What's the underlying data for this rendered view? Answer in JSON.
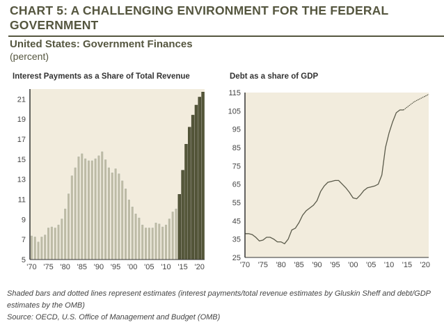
{
  "header": {
    "title": "CHART 5: A CHALLENGING ENVIRONMENT FOR THE FEDERAL GOVERNMENT",
    "subtitle": "United States: Government Finances",
    "unit": "(percent)"
  },
  "colors": {
    "plot_bg": "#f2ecdd",
    "actual_bar": "#bdbba6",
    "estimate_bar": "#55573a",
    "line": "#5a5a4a",
    "title": "#55563f"
  },
  "chart_data": [
    {
      "type": "bar",
      "title": "Interest Payments as a Share of Total Revenue",
      "x": [
        1970,
        1971,
        1972,
        1973,
        1974,
        1975,
        1976,
        1977,
        1978,
        1979,
        1980,
        1981,
        1982,
        1983,
        1984,
        1985,
        1986,
        1987,
        1988,
        1989,
        1990,
        1991,
        1992,
        1993,
        1994,
        1995,
        1996,
        1997,
        1998,
        1999,
        2000,
        2001,
        2002,
        2003,
        2004,
        2005,
        2006,
        2007,
        2008,
        2009,
        2010,
        2011,
        2012,
        2013,
        2014,
        2015,
        2016,
        2017,
        2018,
        2019,
        2020,
        2021
      ],
      "values": [
        7.4,
        7.3,
        6.8,
        7.3,
        7.5,
        8.2,
        8.3,
        8.2,
        8.5,
        9.1,
        10.1,
        11.6,
        13.4,
        14.2,
        15.3,
        15.6,
        15.1,
        14.9,
        14.9,
        15.1,
        15.4,
        15.8,
        15.0,
        14.2,
        13.7,
        14.1,
        13.6,
        12.9,
        12.1,
        11.0,
        10.3,
        9.6,
        9.2,
        8.5,
        8.2,
        8.2,
        8.2,
        8.7,
        8.6,
        8.3,
        8.5,
        9.1,
        9.8,
        10.1,
        11.5,
        13.9,
        16.5,
        18.2,
        19.4,
        20.4,
        21.2,
        21.7
      ],
      "estimate_from": 2014,
      "ylim": [
        5,
        22
      ],
      "yticks": [
        "5",
        "7",
        "9",
        "11",
        "13",
        "15",
        "17",
        "19",
        "21"
      ],
      "xticks": [
        "'70",
        "'75",
        "'80",
        "'85",
        "'90",
        "'95",
        "'00",
        "'05",
        "'10",
        "'15",
        "'20"
      ],
      "grid": false
    },
    {
      "type": "line",
      "title": "Debt as a share of GDP",
      "x": [
        1970,
        1971,
        1972,
        1973,
        1974,
        1975,
        1976,
        1977,
        1978,
        1979,
        1980,
        1981,
        1982,
        1983,
        1984,
        1985,
        1986,
        1987,
        1988,
        1989,
        1990,
        1991,
        1992,
        1993,
        1994,
        1995,
        1996,
        1997,
        1998,
        1999,
        2000,
        2001,
        2002,
        2003,
        2004,
        2005,
        2006,
        2007,
        2008,
        2009,
        2010,
        2011,
        2012,
        2013,
        2014,
        2015,
        2016,
        2017,
        2018,
        2019,
        2020,
        2021
      ],
      "values": [
        38,
        38,
        37.5,
        36,
        34,
        34.5,
        36,
        36,
        35,
        33.5,
        33.5,
        32.5,
        35,
        40,
        41,
        44,
        48,
        50.5,
        52,
        53.5,
        56,
        61,
        64,
        66,
        66.5,
        67,
        67,
        65,
        63,
        60.5,
        57.5,
        57,
        59,
        61.5,
        63,
        63.5,
        64,
        65,
        70,
        85,
        93,
        99,
        104,
        105.5,
        105.5,
        107,
        108.5,
        110,
        111,
        112,
        113,
        114
      ],
      "estimate_from": 2014,
      "ylim": [
        25,
        115
      ],
      "yticks": [
        "25",
        "35",
        "45",
        "55",
        "65",
        "75",
        "85",
        "95",
        "105",
        "115"
      ],
      "xticks": [
        "'70",
        "'75",
        "'80",
        "'85",
        "'90",
        "'95",
        "'00",
        "'05",
        "'10",
        "'15",
        "'20"
      ],
      "grid": false
    }
  ],
  "footnote": {
    "line1": "Shaded bars and dotted lines represent estimates (interest payments/total revenue estimates by Gluskin Sheff and debt/GDP estimates by the OMB)",
    "source": "Source: OECD, U.S. Office of Management and Budget (OMB)"
  }
}
